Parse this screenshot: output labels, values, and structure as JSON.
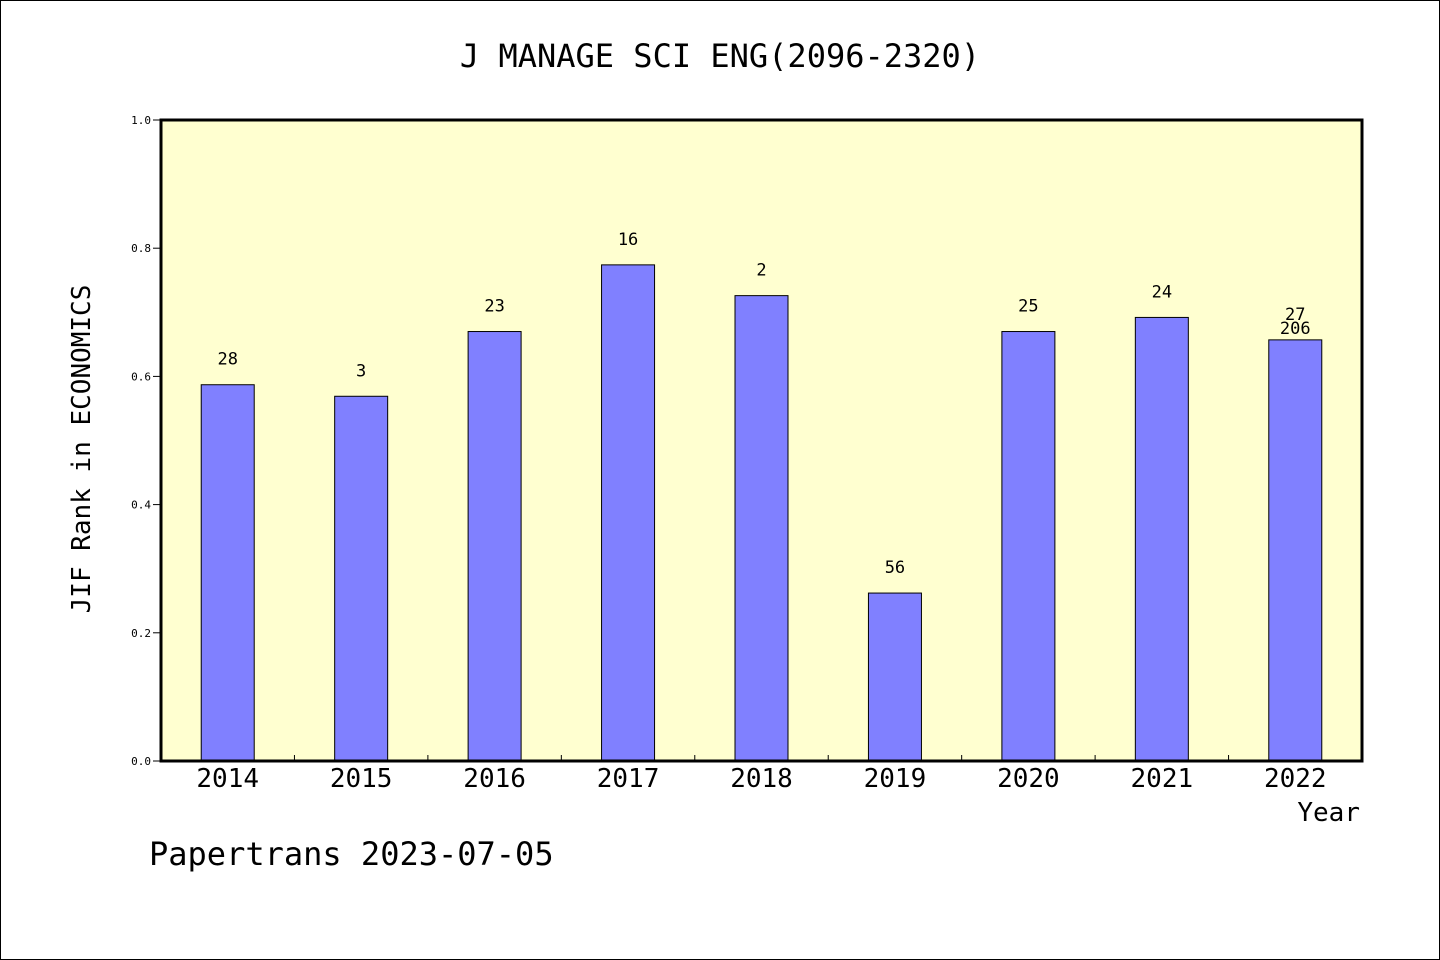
{
  "chart_data": {
    "type": "bar",
    "title": "J MANAGE SCI ENG(2096-2320)",
    "xlabel": "Year",
    "ylabel": "JIF Rank in ECONOMICS",
    "ylim": [
      0,
      1.0
    ],
    "yticks": [
      "0.0",
      "0.2",
      "0.4",
      "0.6",
      "0.8",
      "1.0"
    ],
    "categories": [
      "2014",
      "2015",
      "2016",
      "2017",
      "2018",
      "2019",
      "2020",
      "2021",
      "2022"
    ],
    "values": [
      0.587,
      0.569,
      0.67,
      0.774,
      0.726,
      0.262,
      0.67,
      0.692,
      0.657
    ],
    "bar_labels": [
      "28",
      "3",
      "23",
      "16",
      "2",
      "56",
      "25",
      "24",
      "27"
    ],
    "extra_annotations": [
      {
        "category": "2022",
        "text": "206"
      }
    ],
    "colors": {
      "bar": "#8080ff",
      "plot_background": "#ffffd0",
      "axis": "#000000"
    },
    "grid": false,
    "legend": "none"
  },
  "footer": "Papertrans 2023-07-05"
}
